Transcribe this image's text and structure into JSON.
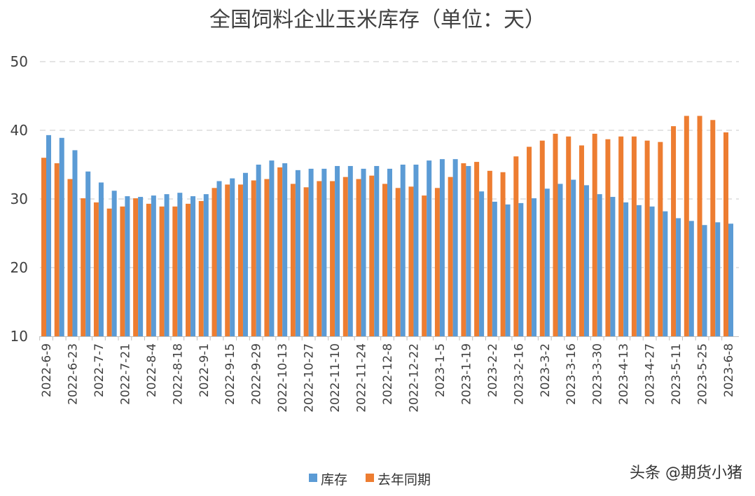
{
  "chart_data": {
    "type": "bar",
    "title": "全国饲料企业玉米库存（单位：天）",
    "xlabel": "",
    "ylabel": "",
    "ylim": [
      10,
      50
    ],
    "yticks": [
      10,
      20,
      30,
      40,
      50
    ],
    "grid": true,
    "legend_position": "bottom",
    "categories": [
      "2022-6-9",
      "2022-6-16",
      "2022-6-23",
      "2022-6-30",
      "2022-7-7",
      "2022-7-14",
      "2022-7-21",
      "2022-7-28",
      "2022-8-4",
      "2022-8-11",
      "2022-8-18",
      "2022-8-25",
      "2022-9-1",
      "2022-9-8",
      "2022-9-15",
      "2022-9-22",
      "2022-9-29",
      "2022-10-6",
      "2022-10-13",
      "2022-10-20",
      "2022-10-27",
      "2022-11-3",
      "2022-11-10",
      "2022-11-17",
      "2022-11-24",
      "2022-12-1",
      "2022-12-8",
      "2022-12-15",
      "2022-12-22",
      "2022-12-29",
      "2023-1-5",
      "2023-1-12",
      "2023-1-19",
      "2023-1-26",
      "2023-2-2",
      "2023-2-9",
      "2023-2-16",
      "2023-2-23",
      "2023-3-2",
      "2023-3-9",
      "2023-3-16",
      "2023-3-23",
      "2023-3-30",
      "2023-4-6",
      "2023-4-13",
      "2023-4-20",
      "2023-4-27",
      "2023-5-4",
      "2023-5-11",
      "2023-5-18",
      "2023-5-25",
      "2023-6-1",
      "2023-6-8"
    ],
    "tick_labels": [
      "2022-6-9",
      "2022-6-23",
      "2022-7-7",
      "2022-7-21",
      "2022-8-4",
      "2022-8-18",
      "2022-9-1",
      "2022-9-15",
      "2022-9-29",
      "2022-10-13",
      "2022-10-27",
      "2022-11-10",
      "2022-11-24",
      "2022-12-8",
      "2022-12-22",
      "2023-1-5",
      "2023-1-19",
      "2023-2-2",
      "2023-2-16",
      "2023-3-2",
      "2023-3-16",
      "2023-3-30",
      "2023-4-13",
      "2023-4-27",
      "2023-5-11",
      "2023-5-25",
      "2023-6-8"
    ],
    "series": [
      {
        "name": "库存",
        "color": "#5b9bd5",
        "values": [
          39.3,
          38.9,
          37.1,
          34.0,
          32.4,
          31.2,
          30.4,
          30.3,
          30.5,
          30.7,
          30.9,
          30.4,
          30.7,
          32.6,
          33.0,
          33.8,
          35.0,
          35.6,
          35.2,
          34.2,
          34.4,
          34.4,
          34.8,
          34.8,
          34.4,
          34.8,
          34.4,
          35.0,
          35.0,
          35.6,
          35.8,
          35.8,
          34.8,
          31.1,
          29.6,
          29.2,
          29.4,
          30.1,
          31.5,
          32.2,
          32.8,
          32.0,
          30.7,
          30.3,
          29.5,
          29.1,
          28.9,
          28.2,
          27.2,
          26.8,
          26.2,
          26.6,
          26.4
        ]
      },
      {
        "name": "去年同期",
        "color": "#ed7d31",
        "values": [
          36.0,
          35.2,
          32.9,
          30.1,
          29.5,
          28.6,
          28.9,
          30.1,
          29.3,
          28.9,
          28.9,
          29.3,
          29.7,
          31.6,
          32.1,
          32.1,
          32.7,
          32.9,
          34.6,
          32.2,
          31.7,
          32.6,
          32.6,
          33.2,
          32.9,
          33.4,
          32.2,
          31.6,
          31.8,
          30.5,
          31.6,
          33.2,
          35.2,
          35.4,
          34.1,
          33.9,
          36.2,
          37.6,
          38.5,
          39.5,
          39.1,
          37.8,
          39.5,
          38.7,
          39.1,
          39.1,
          38.5,
          38.3,
          40.6,
          42.1,
          42.1,
          41.5,
          39.7
        ]
      }
    ]
  },
  "watermark": "头条 @期货小猪"
}
